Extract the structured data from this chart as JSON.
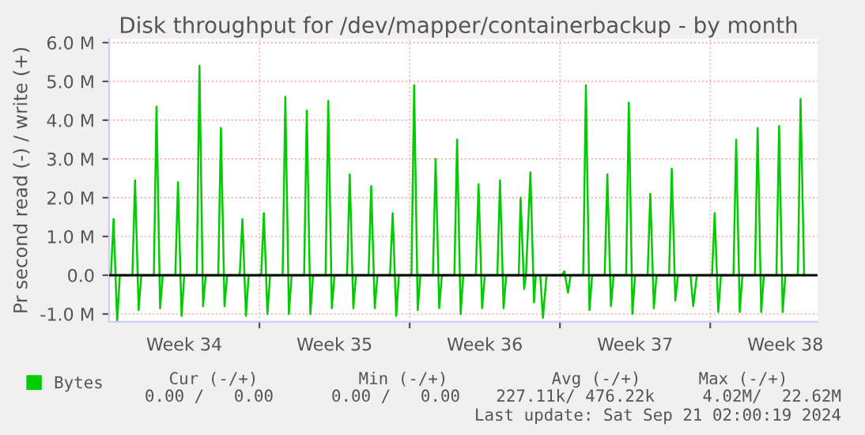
{
  "chart_data": {
    "type": "line",
    "title": "Disk throughput for /dev/mapper/containerbackup - by month",
    "ylabel": "Pr second read (-) / write (+)",
    "xlim": [
      "2024-08-12",
      "2024-09-14"
    ],
    "ylim": [
      -1.2,
      6.1
    ],
    "xticks": [
      {
        "value": "2024-08-15T12:00",
        "label": "Week 34"
      },
      {
        "value": "2024-08-19",
        "label": null
      },
      {
        "value": "2024-08-22T12:00",
        "label": "Week 35"
      },
      {
        "value": "2024-08-26",
        "label": null
      },
      {
        "value": "2024-08-29T12:00",
        "label": "Week 36"
      },
      {
        "value": "2024-09-02",
        "label": null
      },
      {
        "value": "2024-09-05T12:00",
        "label": "Week 37"
      },
      {
        "value": "2024-09-09",
        "label": null
      },
      {
        "value": "2024-09-12T12:00",
        "label": "Week 38"
      }
    ],
    "yticks": [
      {
        "value": -1,
        "label": "-1.0 M"
      },
      {
        "value": 0,
        "label": "0.0"
      },
      {
        "value": 1,
        "label": "1.0 M"
      },
      {
        "value": 2,
        "label": "2.0 M"
      },
      {
        "value": 3,
        "label": "3.0 M"
      },
      {
        "value": 4,
        "label": "4.0 M"
      },
      {
        "value": 5,
        "label": "5.0 M"
      },
      {
        "value": 6,
        "label": "6.0 M"
      }
    ],
    "grid": true,
    "legend": "bottom left",
    "ref_lines": [
      {
        "axis": "y",
        "value": 0,
        "color": "#000000"
      }
    ],
    "series": [
      {
        "name": "Bytes",
        "color": "#00cc00",
        "x": [
          "2024-08-12T02:00",
          "2024-08-12T05:00",
          "2024-08-12T09:00",
          "2024-08-12T12:00",
          "2024-08-13T02:00",
          "2024-08-13T05:00",
          "2024-08-13T09:00",
          "2024-08-13T12:00",
          "2024-08-14T02:00",
          "2024-08-14T05:00",
          "2024-08-14T09:00",
          "2024-08-14T12:00",
          "2024-08-15T02:00",
          "2024-08-15T05:00",
          "2024-08-15T09:00",
          "2024-08-15T12:00",
          "2024-08-16T02:00",
          "2024-08-16T05:00",
          "2024-08-16T09:00",
          "2024-08-16T12:00",
          "2024-08-17T02:00",
          "2024-08-17T05:00",
          "2024-08-17T09:00",
          "2024-08-17T12:00",
          "2024-08-18T02:00",
          "2024-08-18T05:00",
          "2024-08-18T09:00",
          "2024-08-18T12:00",
          "2024-08-19T02:00",
          "2024-08-19T05:00",
          "2024-08-19T09:00",
          "2024-08-19T12:00",
          "2024-08-20T02:00",
          "2024-08-20T05:00",
          "2024-08-20T09:00",
          "2024-08-20T12:00",
          "2024-08-21T02:00",
          "2024-08-21T05:00",
          "2024-08-21T09:00",
          "2024-08-21T12:00",
          "2024-08-22T02:00",
          "2024-08-22T05:00",
          "2024-08-22T09:00",
          "2024-08-22T12:00",
          "2024-08-23T02:00",
          "2024-08-23T05:00",
          "2024-08-23T09:00",
          "2024-08-23T12:00",
          "2024-08-24T02:00",
          "2024-08-24T05:00",
          "2024-08-24T09:00",
          "2024-08-24T12:00",
          "2024-08-25T02:00",
          "2024-08-25T05:00",
          "2024-08-25T09:00",
          "2024-08-25T12:00",
          "2024-08-26T02:00",
          "2024-08-26T05:00",
          "2024-08-26T09:00",
          "2024-08-26T12:00",
          "2024-08-27T02:00",
          "2024-08-27T05:00",
          "2024-08-27T09:00",
          "2024-08-27T12:00",
          "2024-08-28T02:00",
          "2024-08-28T05:00",
          "2024-08-28T09:00",
          "2024-08-28T12:00",
          "2024-08-29T02:00",
          "2024-08-29T05:00",
          "2024-08-29T09:00",
          "2024-08-29T12:00",
          "2024-08-30T02:00",
          "2024-08-30T05:00",
          "2024-08-30T09:00",
          "2024-08-30T12:00",
          "2024-08-31T02:00",
          "2024-08-31T04:00",
          "2024-08-31T08:00",
          "2024-08-31T10:00",
          "2024-08-31T15:00",
          "2024-08-31T19:00",
          "2024-08-31T21:00",
          "2024-09-01T02:00",
          "2024-09-01T05:00",
          "2024-09-01T09:00",
          "2024-09-02T02:00",
          "2024-09-02T05:00",
          "2024-09-02T09:00",
          "2024-09-02T12:00",
          "2024-09-03T02:00",
          "2024-09-03T05:00",
          "2024-09-03T09:00",
          "2024-09-03T12:00",
          "2024-09-04T02:00",
          "2024-09-04T05:00",
          "2024-09-04T09:00",
          "2024-09-04T12:00",
          "2024-09-05T02:00",
          "2024-09-05T05:00",
          "2024-09-05T09:00",
          "2024-09-05T12:00",
          "2024-09-06T02:00",
          "2024-09-06T05:00",
          "2024-09-06T09:00",
          "2024-09-06T12:00",
          "2024-09-07T02:00",
          "2024-09-07T05:00",
          "2024-09-07T09:00",
          "2024-09-07T12:00",
          "2024-09-08T02:00",
          "2024-09-08T05:00",
          "2024-09-08T09:00",
          "2024-09-09T02:00",
          "2024-09-09T05:00",
          "2024-09-09T09:00",
          "2024-09-09T12:00",
          "2024-09-10T02:00",
          "2024-09-10T05:00",
          "2024-09-10T09:00",
          "2024-09-10T12:00",
          "2024-09-11T02:00",
          "2024-09-11T05:00",
          "2024-09-11T09:00",
          "2024-09-11T12:00",
          "2024-09-12T02:00",
          "2024-09-12T05:00",
          "2024-09-12T09:00",
          "2024-09-12T12:00",
          "2024-09-13T02:00",
          "2024-09-13T05:00",
          "2024-09-13T09:00"
        ],
        "values": [
          0,
          1.45,
          -1.2,
          0,
          0,
          2.45,
          -0.9,
          0,
          0,
          4.35,
          -0.85,
          0,
          0,
          2.4,
          -1.05,
          0,
          0,
          5.4,
          -0.8,
          0,
          0,
          3.8,
          -0.8,
          0,
          0,
          1.45,
          -1.05,
          0,
          0,
          1.6,
          -1.0,
          0,
          0,
          4.6,
          -1.0,
          0,
          0,
          4.25,
          -1.0,
          0,
          0,
          4.5,
          -0.85,
          0,
          0,
          2.6,
          -0.85,
          0,
          0,
          2.3,
          -0.85,
          0,
          0,
          1.6,
          -1.05,
          0,
          0,
          4.9,
          -0.9,
          0,
          0,
          3.0,
          -0.85,
          0,
          0,
          3.5,
          -1.0,
          0,
          0,
          2.35,
          -0.85,
          0,
          0,
          2.45,
          -0.85,
          0,
          0,
          2.0,
          -0.35,
          0,
          2.65,
          -0.7,
          0,
          0,
          -1.1,
          0,
          0,
          0.1,
          -0.45,
          0,
          0,
          4.9,
          -0.9,
          0,
          0,
          2.6,
          -0.8,
          0,
          0,
          4.45,
          -1.0,
          0,
          0,
          2.1,
          -0.85,
          0,
          0,
          2.75,
          -0.65,
          0,
          0,
          -0.8,
          0,
          0,
          1.6,
          -0.95,
          0,
          0,
          3.5,
          -0.95,
          0,
          0,
          3.8,
          -0.95,
          0,
          0,
          3.85,
          -0.95,
          0,
          0,
          4.55,
          0
        ]
      }
    ],
    "annotations": [
      "Cur (-/+)",
      "Min (-/+)",
      "Avg (-/+)",
      "Max (-/+)",
      "0.00 /   0.00",
      "0.00 /   0.00",
      "227.11k/ 476.22k",
      "4.02M/  22.62M",
      "Last update: Sat Sep 21 02:00:19 2024"
    ]
  }
}
